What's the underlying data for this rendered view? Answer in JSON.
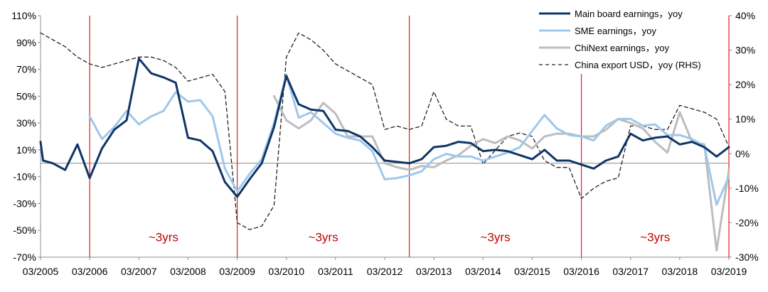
{
  "chart_data": {
    "type": "line",
    "title": "",
    "x_labels": [
      "03/2005",
      "03/2006",
      "03/2007",
      "03/2008",
      "03/2009",
      "03/2010",
      "03/2011",
      "03/2012",
      "03/2013",
      "03/2014",
      "03/2015",
      "03/2016",
      "03/2017",
      "03/2018",
      "03/2019"
    ],
    "y_left": {
      "min": -70,
      "max": 110,
      "step": 20,
      "format": "percent"
    },
    "y_right": {
      "min": -30,
      "max": 40,
      "step": 10,
      "format": "percent"
    },
    "grid": false,
    "legend_position": "top-right",
    "series": [
      {
        "name": "Main board earnings，yoy",
        "axis": "left",
        "color": "#0f3566",
        "width": 3,
        "points": [
          [
            2005.0,
            16
          ],
          [
            2005.05,
            2
          ],
          [
            2005.25,
            0
          ],
          [
            2005.5,
            -5
          ],
          [
            2005.75,
            14
          ],
          [
            2006.0,
            -11
          ],
          [
            2006.25,
            11
          ],
          [
            2006.5,
            25
          ],
          [
            2006.75,
            32
          ],
          [
            2007.0,
            78
          ],
          [
            2007.25,
            67
          ],
          [
            2007.5,
            64
          ],
          [
            2007.75,
            60
          ],
          [
            2008.0,
            19
          ],
          [
            2008.25,
            17
          ],
          [
            2008.5,
            9
          ],
          [
            2008.75,
            -14
          ],
          [
            2009.0,
            -25
          ],
          [
            2009.25,
            -12
          ],
          [
            2009.5,
            0
          ],
          [
            2009.75,
            27
          ],
          [
            2010.0,
            65
          ],
          [
            2010.25,
            44
          ],
          [
            2010.5,
            40
          ],
          [
            2010.75,
            39
          ],
          [
            2011.0,
            25
          ],
          [
            2011.25,
            24
          ],
          [
            2011.5,
            20
          ],
          [
            2011.75,
            12
          ],
          [
            2012.0,
            2
          ],
          [
            2012.25,
            1
          ],
          [
            2012.5,
            0
          ],
          [
            2012.75,
            3
          ],
          [
            2013.0,
            12
          ],
          [
            2013.25,
            13
          ],
          [
            2013.5,
            16
          ],
          [
            2013.75,
            15
          ],
          [
            2014.0,
            9
          ],
          [
            2014.25,
            10
          ],
          [
            2014.5,
            9
          ],
          [
            2014.75,
            6
          ],
          [
            2015.0,
            3
          ],
          [
            2015.25,
            10
          ],
          [
            2015.5,
            2
          ],
          [
            2015.75,
            2
          ],
          [
            2016.0,
            -1
          ],
          [
            2016.25,
            -4
          ],
          [
            2016.5,
            2
          ],
          [
            2016.75,
            5
          ],
          [
            2017.0,
            22
          ],
          [
            2017.25,
            17
          ],
          [
            2017.5,
            19
          ],
          [
            2017.75,
            20
          ],
          [
            2018.0,
            14
          ],
          [
            2018.25,
            16
          ],
          [
            2018.5,
            12
          ],
          [
            2018.75,
            5
          ],
          [
            2019.0,
            12
          ]
        ]
      },
      {
        "name": "SME earnings，yoy",
        "axis": "left",
        "color": "#9dc8ec",
        "width": 3,
        "points": [
          [
            2006.0,
            35
          ],
          [
            2006.25,
            18
          ],
          [
            2006.5,
            27
          ],
          [
            2006.75,
            39
          ],
          [
            2007.0,
            29
          ],
          [
            2007.25,
            35
          ],
          [
            2007.5,
            39
          ],
          [
            2007.75,
            53
          ],
          [
            2008.0,
            46
          ],
          [
            2008.25,
            47
          ],
          [
            2008.5,
            35
          ],
          [
            2008.75,
            -4
          ],
          [
            2009.0,
            -21
          ],
          [
            2009.25,
            -8
          ],
          [
            2009.5,
            3
          ],
          [
            2009.75,
            30
          ],
          [
            2010.0,
            66
          ],
          [
            2010.25,
            34
          ],
          [
            2010.5,
            38
          ],
          [
            2010.75,
            30
          ],
          [
            2011.0,
            22
          ],
          [
            2011.25,
            19
          ],
          [
            2011.5,
            17
          ],
          [
            2011.75,
            9
          ],
          [
            2012.0,
            -12
          ],
          [
            2012.25,
            -11
          ],
          [
            2012.5,
            -9
          ],
          [
            2012.75,
            -6
          ],
          [
            2013.0,
            3
          ],
          [
            2013.25,
            7
          ],
          [
            2013.5,
            5
          ],
          [
            2013.75,
            5
          ],
          [
            2014.0,
            2
          ],
          [
            2014.25,
            5
          ],
          [
            2014.5,
            8
          ],
          [
            2014.75,
            12
          ],
          [
            2015.0,
            24
          ],
          [
            2015.25,
            36
          ],
          [
            2015.5,
            26
          ],
          [
            2015.75,
            21
          ],
          [
            2016.0,
            20
          ],
          [
            2016.25,
            17
          ],
          [
            2016.5,
            28
          ],
          [
            2016.75,
            33
          ],
          [
            2017.0,
            33
          ],
          [
            2017.25,
            28
          ],
          [
            2017.5,
            29
          ],
          [
            2017.75,
            21
          ],
          [
            2018.0,
            21
          ],
          [
            2018.25,
            18
          ],
          [
            2018.5,
            13
          ],
          [
            2018.75,
            -31
          ],
          [
            2019.0,
            -10
          ]
        ]
      },
      {
        "name": "ChiNext earnings，yoy",
        "axis": "left",
        "color": "#bdbdbd",
        "width": 3,
        "points": [
          [
            2009.75,
            50
          ],
          [
            2010.0,
            32
          ],
          [
            2010.25,
            26
          ],
          [
            2010.5,
            32
          ],
          [
            2010.75,
            45
          ],
          [
            2011.0,
            37
          ],
          [
            2011.25,
            20
          ],
          [
            2011.5,
            20
          ],
          [
            2011.75,
            20
          ],
          [
            2012.0,
            0
          ],
          [
            2012.25,
            -3
          ],
          [
            2012.5,
            -5
          ],
          [
            2012.75,
            -2
          ],
          [
            2013.0,
            -3
          ],
          [
            2013.25,
            2
          ],
          [
            2013.5,
            6
          ],
          [
            2013.75,
            13
          ],
          [
            2014.0,
            18
          ],
          [
            2014.25,
            15
          ],
          [
            2014.5,
            20
          ],
          [
            2014.75,
            17
          ],
          [
            2015.0,
            11
          ],
          [
            2015.25,
            20
          ],
          [
            2015.5,
            22
          ],
          [
            2015.75,
            22
          ],
          [
            2016.0,
            20
          ],
          [
            2016.25,
            20
          ],
          [
            2016.5,
            25
          ],
          [
            2016.75,
            33
          ],
          [
            2017.0,
            30
          ],
          [
            2017.25,
            26
          ],
          [
            2017.5,
            16
          ],
          [
            2017.75,
            8
          ],
          [
            2018.0,
            38
          ],
          [
            2018.25,
            16
          ],
          [
            2018.5,
            14
          ],
          [
            2018.75,
            -65
          ],
          [
            2019.0,
            -5
          ]
        ]
      },
      {
        "name": "China export USD，yoy (RHS)",
        "axis": "right",
        "color": "#222222",
        "width": 1.3,
        "dash": "5,4",
        "points": [
          [
            2005.0,
            35
          ],
          [
            2005.25,
            33
          ],
          [
            2005.5,
            31
          ],
          [
            2005.75,
            28
          ],
          [
            2006.0,
            26
          ],
          [
            2006.25,
            25
          ],
          [
            2006.5,
            26
          ],
          [
            2006.75,
            27
          ],
          [
            2007.0,
            28
          ],
          [
            2007.25,
            28
          ],
          [
            2007.5,
            27
          ],
          [
            2007.75,
            25
          ],
          [
            2008.0,
            21
          ],
          [
            2008.25,
            22
          ],
          [
            2008.5,
            23
          ],
          [
            2008.75,
            18
          ],
          [
            2009.0,
            -20
          ],
          [
            2009.25,
            -22
          ],
          [
            2009.5,
            -21
          ],
          [
            2009.75,
            -15
          ],
          [
            2010.0,
            28
          ],
          [
            2010.25,
            35
          ],
          [
            2010.5,
            33
          ],
          [
            2010.75,
            30
          ],
          [
            2011.0,
            26
          ],
          [
            2011.25,
            24
          ],
          [
            2011.5,
            22
          ],
          [
            2011.75,
            20
          ],
          [
            2012.0,
            7
          ],
          [
            2012.25,
            8
          ],
          [
            2012.5,
            7
          ],
          [
            2012.75,
            8
          ],
          [
            2013.0,
            18
          ],
          [
            2013.25,
            10
          ],
          [
            2013.5,
            8
          ],
          [
            2013.75,
            8
          ],
          [
            2014.0,
            -3
          ],
          [
            2014.25,
            1
          ],
          [
            2014.5,
            5
          ],
          [
            2014.75,
            6
          ],
          [
            2015.0,
            5
          ],
          [
            2015.25,
            -2
          ],
          [
            2015.5,
            -4
          ],
          [
            2015.75,
            -4
          ],
          [
            2016.0,
            -13
          ],
          [
            2016.25,
            -10
          ],
          [
            2016.5,
            -8
          ],
          [
            2016.75,
            -7
          ],
          [
            2017.0,
            8
          ],
          [
            2017.25,
            8
          ],
          [
            2017.5,
            7
          ],
          [
            2017.75,
            7
          ],
          [
            2018.0,
            14
          ],
          [
            2018.25,
            13
          ],
          [
            2018.5,
            12
          ],
          [
            2018.75,
            10
          ],
          [
            2019.0,
            2
          ]
        ]
      }
    ],
    "vertical_markers": [
      2006.0,
      2009.0,
      2012.5,
      2016.0,
      2019.0
    ],
    "annotations": [
      {
        "text": "~3yrs",
        "x": 2007.5,
        "y": -55
      },
      {
        "text": "~3yrs",
        "x": 2010.75,
        "y": -55
      },
      {
        "text": "~3yrs",
        "x": 2014.25,
        "y": -55
      },
      {
        "text": "~3yrs",
        "x": 2017.5,
        "y": -55
      }
    ]
  }
}
